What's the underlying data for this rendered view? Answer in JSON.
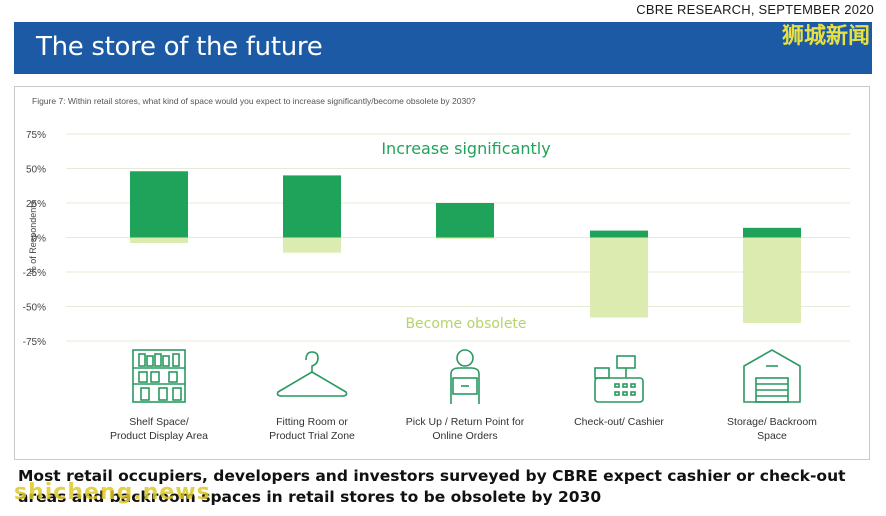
{
  "source": "CBRE RESEARCH, SEPTEMBER 2020",
  "banner_title": "The store of the future",
  "watermark_top": "狮城新闻",
  "watermark_bottom": "shicheng.news",
  "figure_caption": "Figure 7: Within retail stores, what kind of space would you expect to increase significantly/become obsolete by 2030?",
  "caption": "Most retail occupiers, developers and investors surveyed by CBRE expect cashier or check-out areas and backroom spaces in retail stores to be obsolete by 2030",
  "colors": {
    "banner": "#1c5aa6",
    "increase": "#1fa35a",
    "obsolete": "#dcebb0",
    "grid": "#e4ecd6",
    "icon": "#2a9960"
  },
  "chart_data": {
    "type": "bar",
    "ylabel": "% of Respondents",
    "ylim": [
      -75,
      75
    ],
    "yticks": [
      75,
      50,
      25,
      0,
      -25,
      -50,
      -75
    ],
    "ytick_labels": [
      "75%",
      "50%",
      "25%",
      "0%",
      "-25%",
      "-50%",
      "-75%"
    ],
    "categories": [
      {
        "lines": [
          "Shelf Space/",
          "Product Display Area"
        ],
        "icon": "shelf-icon"
      },
      {
        "lines": [
          "Fitting Room or",
          "Product Trial Zone"
        ],
        "icon": "hanger-icon"
      },
      {
        "lines": [
          "Pick Up / Return Point for",
          "Online Orders"
        ],
        "icon": "delivery-person-icon"
      },
      {
        "lines": [
          "Check-out/ Cashier"
        ],
        "icon": "cash-register-icon"
      },
      {
        "lines": [
          "Storage/ Backroom",
          "Space"
        ],
        "icon": "warehouse-icon"
      }
    ],
    "series": [
      {
        "key": "increase",
        "values": [
          48,
          45,
          25,
          5,
          7
        ]
      },
      {
        "key": "obsolete",
        "values": [
          -4,
          -11,
          -1,
          -58,
          -62
        ]
      }
    ],
    "annotations": {
      "increase": "Increase significantly",
      "obsolete": "Become obsolete"
    },
    "grid": true
  }
}
